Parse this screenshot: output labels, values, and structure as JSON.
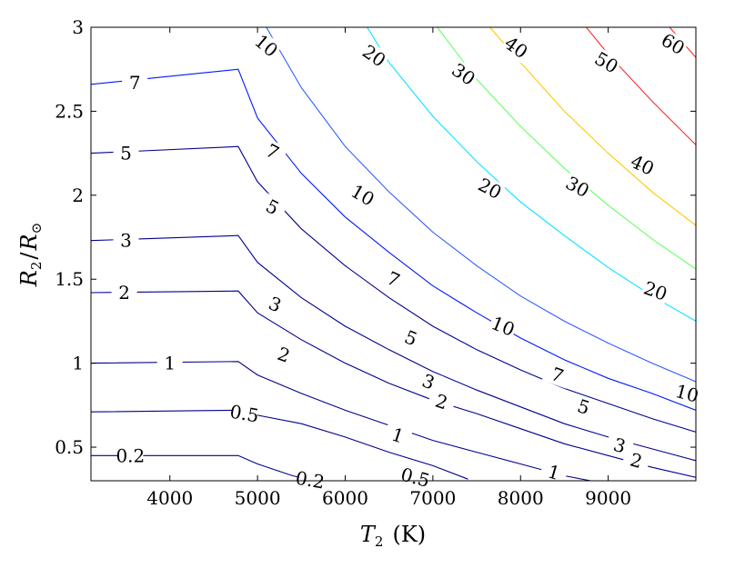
{
  "chart_data": {
    "type": "contour",
    "xlabel_var": "T",
    "xlabel_sub": "2",
    "xlabel_unit": "(K)",
    "ylabel_num": "R",
    "ylabel_num_sub": "2",
    "ylabel_den": "R",
    "ylabel_den_sub": "⊙",
    "xlim": [
      3100,
      10000
    ],
    "ylim": [
      0.3,
      3.0
    ],
    "xticks": [
      4000,
      5000,
      6000,
      7000,
      8000,
      9000
    ],
    "yticks": [
      0.5,
      1,
      1.5,
      2,
      2.5,
      3
    ],
    "ytick_labels": [
      "0.5",
      "1",
      "1.5",
      "2",
      "2.5",
      "3"
    ],
    "contours": [
      {
        "label": "0.2",
        "color": "#00008F",
        "lines": [
          [
            [
              3100,
              0.45
            ],
            [
              4780,
              0.45
            ],
            [
              5000,
              0.4
            ],
            [
              5400,
              0.33
            ],
            [
              5660,
              0.3
            ]
          ]
        ],
        "labels_at": [
          [
            3550,
            0.45,
            0
          ],
          [
            5600,
            0.305,
            10
          ]
        ]
      },
      {
        "label": "0.5",
        "color": "#00008F",
        "lines": [
          [
            [
              3100,
              0.71
            ],
            [
              4780,
              0.72
            ],
            [
              5000,
              0.69
            ],
            [
              5500,
              0.64
            ],
            [
              6000,
              0.56
            ],
            [
              6500,
              0.47
            ],
            [
              7000,
              0.39
            ],
            [
              7400,
              0.31
            ]
          ]
        ],
        "labels_at": [
          [
            4850,
            0.7,
            10
          ],
          [
            6800,
            0.32,
            15
          ]
        ]
      },
      {
        "label": "1",
        "color": "#00008F",
        "lines": [
          [
            [
              3100,
              1.0
            ],
            [
              4780,
              1.01
            ],
            [
              5000,
              0.93
            ],
            [
              5500,
              0.82
            ],
            [
              6000,
              0.72
            ],
            [
              6500,
              0.63
            ],
            [
              7000,
              0.54
            ],
            [
              7500,
              0.47
            ],
            [
              8000,
              0.4
            ],
            [
              8500,
              0.33
            ],
            [
              8800,
              0.3
            ]
          ]
        ],
        "labels_at": [
          [
            4000,
            1.0,
            0
          ],
          [
            6600,
            0.57,
            18
          ],
          [
            8380,
            0.35,
            16
          ]
        ]
      },
      {
        "label": "2",
        "color": "#00008F",
        "lines": [
          [
            [
              3100,
              1.42
            ],
            [
              4780,
              1.43
            ],
            [
              5000,
              1.3
            ],
            [
              5500,
              1.14
            ],
            [
              6000,
              1.0
            ],
            [
              6500,
              0.88
            ],
            [
              7000,
              0.78
            ],
            [
              7500,
              0.7
            ],
            [
              8000,
              0.61
            ],
            [
              8500,
              0.52
            ],
            [
              9000,
              0.45
            ],
            [
              9500,
              0.38
            ],
            [
              10000,
              0.32
            ]
          ]
        ],
        "labels_at": [
          [
            3480,
            1.42,
            0
          ],
          [
            5300,
            1.05,
            20
          ],
          [
            7100,
            0.77,
            18
          ],
          [
            9320,
            0.42,
            16
          ]
        ]
      },
      {
        "label": "3",
        "color": "#00008F",
        "lines": [
          [
            [
              3100,
              1.73
            ],
            [
              4780,
              1.76
            ],
            [
              5000,
              1.6
            ],
            [
              5500,
              1.39
            ],
            [
              6000,
              1.22
            ],
            [
              6500,
              1.08
            ],
            [
              7000,
              0.95
            ],
            [
              7500,
              0.84
            ],
            [
              8000,
              0.74
            ],
            [
              8500,
              0.64
            ],
            [
              9000,
              0.56
            ],
            [
              9500,
              0.49
            ],
            [
              10000,
              0.42
            ]
          ]
        ],
        "labels_at": [
          [
            3500,
            1.73,
            0
          ],
          [
            5200,
            1.35,
            22
          ],
          [
            6950,
            0.89,
            20
          ],
          [
            9130,
            0.51,
            16
          ]
        ]
      },
      {
        "label": "5",
        "color": "#00008F",
        "lines": [
          [
            [
              3100,
              2.25
            ],
            [
              4780,
              2.29
            ],
            [
              5000,
              2.08
            ],
            [
              5500,
              1.8
            ],
            [
              6000,
              1.58
            ],
            [
              6500,
              1.39
            ],
            [
              7000,
              1.22
            ],
            [
              7500,
              1.08
            ],
            [
              8000,
              0.96
            ],
            [
              8500,
              0.85
            ],
            [
              9000,
              0.76
            ],
            [
              9500,
              0.67
            ],
            [
              10000,
              0.59
            ]
          ]
        ],
        "labels_at": [
          [
            3500,
            2.25,
            0
          ],
          [
            5170,
            1.93,
            28
          ],
          [
            6750,
            1.15,
            22
          ],
          [
            8720,
            0.74,
            18
          ]
        ]
      },
      {
        "label": "7",
        "color": "#0018FF",
        "lines": [
          [
            [
              3100,
              2.66
            ],
            [
              4780,
              2.75
            ],
            [
              5000,
              2.46
            ],
            [
              5500,
              2.13
            ],
            [
              6000,
              1.87
            ],
            [
              6500,
              1.66
            ],
            [
              7000,
              1.46
            ],
            [
              7500,
              1.3
            ],
            [
              8000,
              1.15
            ],
            [
              8500,
              1.02
            ],
            [
              9000,
              0.91
            ],
            [
              9500,
              0.82
            ],
            [
              10000,
              0.72
            ]
          ]
        ],
        "labels_at": [
          [
            3600,
            2.67,
            0
          ],
          [
            5170,
            2.26,
            28
          ],
          [
            6550,
            1.5,
            25
          ],
          [
            8420,
            0.93,
            20
          ]
        ]
      },
      {
        "label": "10",
        "color": "#2F5BFF",
        "lines": [
          [
            [
              5100,
              3.0
            ],
            [
              5500,
              2.64
            ],
            [
              6000,
              2.29
            ],
            [
              6500,
              2.02
            ],
            [
              7000,
              1.78
            ],
            [
              7500,
              1.58
            ],
            [
              8000,
              1.4
            ],
            [
              8500,
              1.25
            ],
            [
              9000,
              1.12
            ],
            [
              9500,
              1.0
            ],
            [
              10000,
              0.89
            ]
          ]
        ],
        "labels_at": [
          [
            5100,
            2.89,
            40
          ],
          [
            6200,
            2.0,
            30
          ],
          [
            7800,
            1.22,
            22
          ],
          [
            9900,
            0.82,
            15
          ]
        ]
      },
      {
        "label": "20",
        "color": "#00E5FF",
        "lines": [
          [
            [
              6250,
              3.0
            ],
            [
              6500,
              2.79
            ],
            [
              7000,
              2.47
            ],
            [
              7500,
              2.2
            ],
            [
              8000,
              1.96
            ],
            [
              8500,
              1.76
            ],
            [
              9000,
              1.57
            ],
            [
              9500,
              1.4
            ],
            [
              10000,
              1.25
            ]
          ]
        ],
        "labels_at": [
          [
            6330,
            2.83,
            35
          ],
          [
            7650,
            2.04,
            28
          ],
          [
            9540,
            1.43,
            20
          ]
        ]
      },
      {
        "label": "30",
        "color": "#66FF66",
        "lines": [
          [
            [
              7050,
              3.0
            ],
            [
              7500,
              2.69
            ],
            [
              8000,
              2.41
            ],
            [
              8500,
              2.16
            ],
            [
              9000,
              1.94
            ],
            [
              9500,
              1.74
            ],
            [
              10000,
              1.56
            ]
          ]
        ],
        "labels_at": [
          [
            7350,
            2.72,
            35
          ],
          [
            8650,
            2.05,
            28
          ]
        ]
      },
      {
        "label": "40",
        "color": "#FFC800",
        "lines": [
          [
            [
              7650,
              3.0
            ],
            [
              8000,
              2.79
            ],
            [
              8500,
              2.5
            ],
            [
              9000,
              2.25
            ],
            [
              9500,
              2.02
            ],
            [
              10000,
              1.82
            ]
          ]
        ],
        "labels_at": [
          [
            7950,
            2.88,
            35
          ],
          [
            9390,
            2.18,
            25
          ]
        ]
      },
      {
        "label": "50",
        "color": "#FF2D2D",
        "lines": [
          [
            [
              8750,
              3.0
            ],
            [
              9000,
              2.84
            ],
            [
              9500,
              2.56
            ],
            [
              10000,
              2.3
            ]
          ]
        ],
        "labels_at": [
          [
            8980,
            2.79,
            30
          ]
        ]
      },
      {
        "label": "60",
        "color": "#FF2D2D",
        "lines": [
          [
            [
              9700,
              3.0
            ],
            [
              10000,
              2.82
            ]
          ]
        ],
        "labels_at": [
          [
            9740,
            2.9,
            30
          ]
        ]
      }
    ]
  }
}
